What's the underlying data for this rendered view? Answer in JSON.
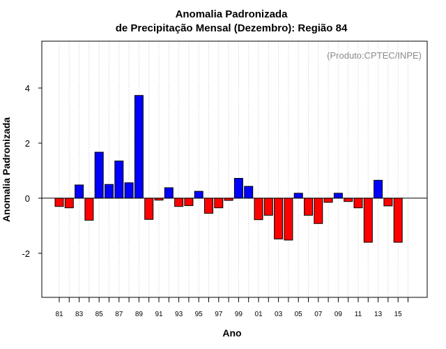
{
  "chart_data": {
    "type": "bar",
    "title": [
      "Anomalia Padronizada",
      "de Precipitação Mensal (Dezembro): Região 84"
    ],
    "credit": "(Produto:CPTEC/INPE)",
    "xlabel": "Ano",
    "ylabel": "Anomalia Padronizada",
    "ylim": [
      -3.6,
      5.7
    ],
    "yticks": [
      -2,
      0,
      2,
      4
    ],
    "grid": "vertical-dotted",
    "x_tick_labels": [
      "81",
      "83",
      "85",
      "87",
      "89",
      "91",
      "93",
      "95",
      "97",
      "99",
      "01",
      "03",
      "05",
      "07",
      "09",
      "11",
      "13",
      "15"
    ],
    "categories": [
      "1981",
      "1982",
      "1983",
      "1984",
      "1985",
      "1986",
      "1987",
      "1988",
      "1989",
      "1990",
      "1991",
      "1992",
      "1993",
      "1994",
      "1995",
      "1996",
      "1997",
      "1998",
      "1999",
      "2000",
      "2001",
      "2002",
      "2003",
      "2004",
      "2005",
      "2006",
      "2007",
      "2008",
      "2009",
      "2010",
      "2011",
      "2012",
      "2013",
      "2014",
      "2015"
    ],
    "values": [
      -0.3,
      -0.35,
      0.48,
      -0.8,
      1.67,
      0.5,
      1.35,
      0.56,
      3.73,
      -0.77,
      -0.07,
      0.38,
      -0.3,
      -0.27,
      0.25,
      -0.55,
      -0.35,
      -0.08,
      0.72,
      0.43,
      -0.78,
      -0.62,
      -1.48,
      -1.52,
      0.18,
      -0.62,
      -0.92,
      -0.15,
      0.18,
      -0.12,
      -0.35,
      -1.6,
      0.65,
      -0.28,
      -1.6
    ],
    "colors": {
      "positive": "#0000ff",
      "negative": "#ff0000",
      "zero_line": "#000000",
      "grid": "#c8c8c8"
    }
  }
}
